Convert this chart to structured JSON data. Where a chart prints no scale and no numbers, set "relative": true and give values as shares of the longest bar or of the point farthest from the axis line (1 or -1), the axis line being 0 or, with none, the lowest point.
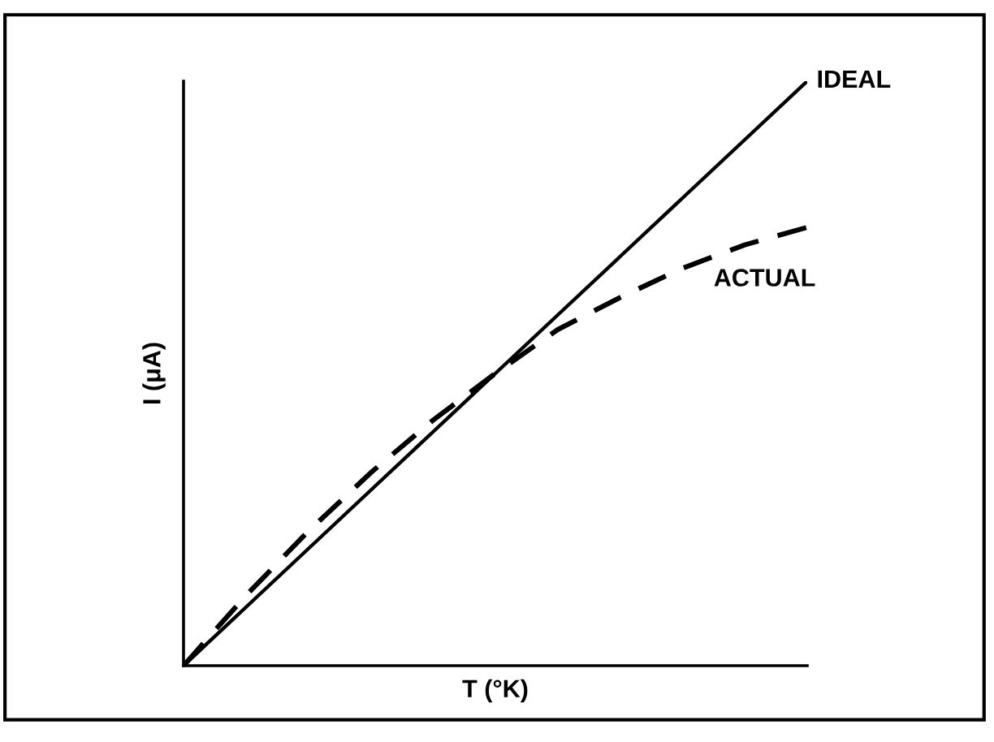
{
  "chart_data": {
    "type": "line",
    "xlabel": "T (°K)",
    "ylabel": "I (μA)",
    "relative": true,
    "categories": [
      null,
      null,
      null,
      null,
      null,
      null,
      null,
      null,
      null,
      null,
      null
    ],
    "series": [
      {
        "name": "IDEAL",
        "color": "#000000",
        "line_style": "solid",
        "values": [
          0,
          0.1,
          0.2,
          0.3,
          0.4,
          0.5,
          0.6,
          0.7,
          0.8,
          0.9,
          1
        ]
      },
      {
        "name": "ACTUAL",
        "color": "#000000",
        "line_style": "dashed",
        "values": [
          0,
          0.12,
          0.23,
          0.33,
          0.42,
          0.5,
          0.575,
          0.63,
          0.68,
          0.72,
          0.75
        ]
      }
    ],
    "marker": "none",
    "legend": false
  }
}
